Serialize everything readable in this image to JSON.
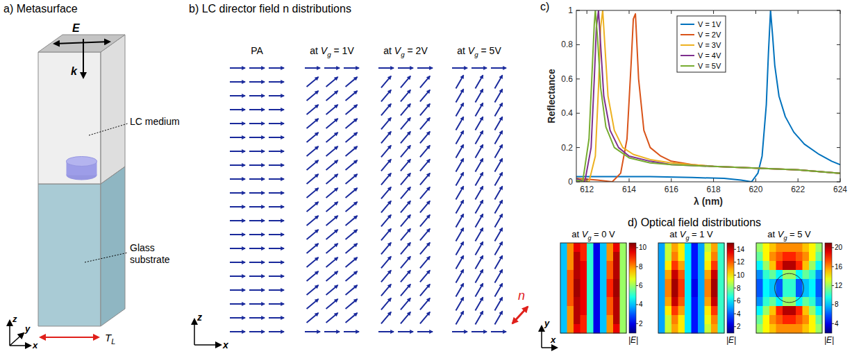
{
  "panels": {
    "a": {
      "title": "a) Metasurface",
      "e_label": "E",
      "k_label": "k",
      "lc_label": "LC medium",
      "glass_label": "Glass substrate",
      "period_label": "T",
      "period_sub": "L",
      "axes": {
        "x": "x",
        "y": "y",
        "z": "z"
      }
    },
    "b": {
      "title": "b) LC director field n distributions",
      "n_label": "n",
      "axes": {
        "z": "z",
        "x": "x"
      },
      "columns": [
        {
          "label": "PA",
          "tilt_deg": 0
        },
        {
          "prefix": "at ",
          "var": "V",
          "sub": "g",
          "suffix": " = 1V",
          "tilt_deg": 40
        },
        {
          "prefix": "at ",
          "var": "V",
          "sub": "g",
          "suffix": " = 2V",
          "tilt_deg": 50
        },
        {
          "prefix": "at ",
          "var": "V",
          "sub": "g",
          "suffix": " = 5V",
          "tilt_deg": 60
        }
      ]
    },
    "d": {
      "title": "d) Optical field distributions",
      "axes": {
        "y": "y",
        "x": "x"
      },
      "maps": [
        {
          "prefix": "at ",
          "var": "V",
          "sub": "g",
          "suffix": " = 0 V",
          "cbar_label": "|E|",
          "clim": [
            1,
            10.5
          ],
          "cticks": [
            2,
            4,
            6,
            8,
            10
          ],
          "pillar_outline": false,
          "cells": [
            [
              4,
              8,
              9.5,
              9,
              5,
              2,
              4,
              8,
              9.5,
              6
            ],
            [
              4,
              8,
              10,
              9,
              5,
              2,
              4,
              8,
              10,
              6
            ],
            [
              4,
              8,
              10,
              9.5,
              5,
              2,
              4,
              8.5,
              10,
              6
            ],
            [
              4,
              8.5,
              10,
              9.5,
              5,
              2,
              4,
              8.5,
              10,
              6
            ],
            [
              4,
              8.5,
              10.2,
              9.5,
              5,
              2,
              4,
              9,
              10.2,
              6
            ],
            [
              4,
              8.5,
              10.2,
              9.5,
              5,
              2,
              4,
              9,
              10.2,
              6
            ],
            [
              4,
              8.5,
              10,
              9.5,
              5,
              2,
              4,
              8.5,
              10,
              6
            ],
            [
              4,
              8,
              10,
              9.5,
              5,
              2,
              4,
              8.5,
              10,
              6
            ],
            [
              4,
              8,
              10,
              9,
              5,
              2,
              4,
              8,
              10,
              6
            ],
            [
              4,
              8,
              9.5,
              9,
              5,
              2,
              4,
              8,
              9.5,
              6
            ]
          ]
        },
        {
          "prefix": "at ",
          "var": "V",
          "sub": "g",
          "suffix": " = 1 V",
          "cbar_label": "|E|",
          "clim": [
            1,
            15
          ],
          "cticks": [
            2,
            4,
            6,
            8,
            10,
            12,
            14
          ],
          "pillar_outline": false,
          "cells": [
            [
              5,
              9,
              11,
              10,
              6,
              3,
              5,
              9,
              11,
              7
            ],
            [
              5,
              9,
              11.5,
              10,
              6,
              3,
              5,
              9.5,
              11.5,
              7
            ],
            [
              5,
              10,
              12.5,
              11,
              6,
              3,
              5,
              10,
              12.5,
              7
            ],
            [
              5,
              11,
              14,
              12,
              6,
              3,
              5,
              11,
              14,
              7
            ],
            [
              5,
              11.5,
              14.5,
              12.5,
              6,
              2.5,
              5,
              11.5,
              14.5,
              7
            ],
            [
              5,
              11.5,
              14.5,
              12.5,
              6,
              2.5,
              5,
              11.5,
              14.5,
              7
            ],
            [
              5,
              11,
              14,
              12,
              6,
              3,
              5,
              11,
              14,
              7
            ],
            [
              5,
              10,
              12.5,
              11,
              6,
              3,
              5,
              10,
              12.5,
              7
            ],
            [
              5,
              9,
              11.5,
              10,
              6,
              3,
              5,
              9.5,
              11.5,
              7
            ],
            [
              5,
              9,
              11,
              10,
              6,
              3,
              5,
              9,
              11,
              7
            ]
          ]
        },
        {
          "prefix": "at ",
          "var": "V",
          "sub": "g",
          "suffix": " = 5 V",
          "cbar_label": "|E|",
          "clim": [
            2,
            21
          ],
          "cticks": [
            4,
            8,
            12,
            16,
            20
          ],
          "pillar_outline": true,
          "cells": [
            [
              12,
              14,
              15,
              16,
              16,
              16,
              16,
              15,
              14,
              12
            ],
            [
              11,
              14,
              16,
              17,
              18,
              18,
              17,
              16,
              14,
              11
            ],
            [
              9,
              12,
              15,
              18,
              20,
              20,
              18,
              15,
              12,
              9
            ],
            [
              7,
              10,
              11,
              9,
              12,
              12,
              9,
              11,
              10,
              7
            ],
            [
              6,
              9,
              8,
              6,
              10,
              10,
              6,
              8,
              9,
              6
            ],
            [
              6,
              9,
              8,
              6,
              10,
              10,
              6,
              8,
              9,
              6
            ],
            [
              7,
              10,
              11,
              9,
              12,
              12,
              9,
              11,
              10,
              7
            ],
            [
              9,
              12,
              15,
              18,
              20,
              20,
              18,
              15,
              12,
              9
            ],
            [
              11,
              14,
              16,
              17,
              18,
              18,
              17,
              16,
              14,
              11
            ],
            [
              12,
              14,
              15,
              16,
              16,
              16,
              16,
              15,
              14,
              12
            ]
          ]
        }
      ]
    }
  },
  "chart_data": {
    "type": "line",
    "title": "c)",
    "xlabel": "λ (nm)",
    "ylabel": "Reflectance",
    "xlim": [
      611.5,
      624
    ],
    "ylim": [
      0,
      1
    ],
    "xticks": [
      612,
      614,
      616,
      618,
      620,
      622,
      624
    ],
    "yticks": [
      0,
      0.2,
      0.4,
      0.6,
      0.8,
      1
    ],
    "grid": false,
    "legend": "upper center",
    "series": [
      {
        "name": "V = 1V",
        "color": "#0072bd",
        "x": [
          611.5,
          613,
          615,
          617,
          618.5,
          619.3,
          619.8,
          620.1,
          620.3,
          620.5,
          620.6,
          620.7,
          620.8,
          620.9,
          621.1,
          621.4,
          621.8,
          622.3,
          623,
          623.6,
          624
        ],
        "values": [
          0.03,
          0.03,
          0.03,
          0.025,
          0.02,
          0.01,
          0,
          0.05,
          0.15,
          0.45,
          0.75,
          1,
          0.85,
          0.68,
          0.5,
          0.38,
          0.29,
          0.22,
          0.16,
          0.12,
          0.1
        ]
      },
      {
        "name": "V = 2V",
        "color": "#d95319",
        "x": [
          611.5,
          612.5,
          613.2,
          613.6,
          613.9,
          614.1,
          614.2,
          614.3,
          614.45,
          614.7,
          615,
          615.5,
          616,
          617,
          618,
          620,
          622,
          624
        ],
        "values": [
          0.02,
          0.01,
          0,
          0.05,
          0.25,
          0.7,
          0.95,
          0.98,
          0.6,
          0.3,
          0.2,
          0.15,
          0.12,
          0.1,
          0.09,
          0.08,
          0.07,
          0.05
        ]
      },
      {
        "name": "V = 3V",
        "color": "#edb120",
        "x": [
          611.5,
          612.1,
          612.4,
          612.55,
          612.65,
          612.75,
          612.85,
          613,
          613.3,
          613.7,
          614.2,
          615,
          616,
          618,
          620,
          622,
          624
        ],
        "values": [
          0.02,
          0,
          0.15,
          0.55,
          0.9,
          1,
          0.8,
          0.5,
          0.3,
          0.2,
          0.16,
          0.13,
          0.11,
          0.09,
          0.08,
          0.07,
          0.05
        ]
      },
      {
        "name": "V = 4V",
        "color": "#7e2f8e",
        "x": [
          611.5,
          611.9,
          612.2,
          612.35,
          612.45,
          612.55,
          612.65,
          612.8,
          613.1,
          613.5,
          614,
          615,
          616,
          618,
          620,
          622,
          624
        ],
        "values": [
          0.02,
          0,
          0.2,
          0.6,
          0.9,
          1,
          0.8,
          0.5,
          0.3,
          0.2,
          0.15,
          0.12,
          0.1,
          0.09,
          0.08,
          0.07,
          0.05
        ]
      },
      {
        "name": "V = 5V",
        "color": "#77ac30",
        "x": [
          611.5,
          611.8,
          612.1,
          612.25,
          612.35,
          612.4,
          612.5,
          612.65,
          612.9,
          613.3,
          614,
          615,
          616,
          618,
          620,
          622,
          624
        ],
        "values": [
          0.01,
          0,
          0.25,
          0.65,
          0.92,
          1,
          0.85,
          0.55,
          0.32,
          0.2,
          0.14,
          0.11,
          0.1,
          0.09,
          0.08,
          0.07,
          0.05
        ]
      }
    ]
  }
}
